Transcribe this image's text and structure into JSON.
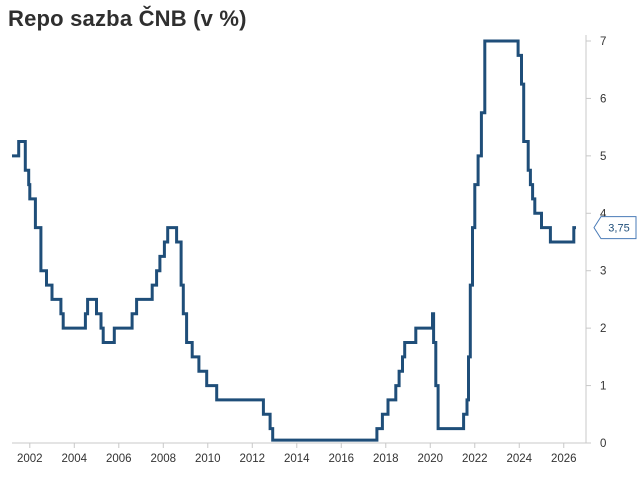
{
  "title": "Repo sazba ČNB (v %)",
  "colors": {
    "line": "#1f4e79",
    "axis": "#c8c8c8",
    "text": "#333333",
    "callout_border": "#4a7bb7"
  },
  "chart_data": {
    "type": "line",
    "title": "Repo sazba ČNB (v %)",
    "xlabel": "",
    "ylabel": "",
    "y_axis_side": "right",
    "xlim": [
      2001.2,
      2027.0
    ],
    "ylim": [
      0,
      7
    ],
    "xticks": [
      2002,
      2004,
      2006,
      2008,
      2010,
      2012,
      2014,
      2016,
      2018,
      2020,
      2022,
      2024,
      2026
    ],
    "xtick_labels": [
      "2002",
      "2004",
      "2006",
      "2008",
      "2010",
      "2012",
      "2014",
      "2016",
      "2018",
      "2020",
      "2022",
      "2024",
      "2026"
    ],
    "yticks": [
      0,
      1,
      2,
      3,
      4,
      5,
      6,
      7
    ],
    "ytick_labels": [
      "0",
      "1",
      "2",
      "3",
      "4",
      "5",
      "6",
      "7"
    ],
    "grid": false,
    "last_value_label": "3,75",
    "series": [
      {
        "step": true,
        "points": [
          [
            2001.2,
            5.0
          ],
          [
            2001.5,
            5.25
          ],
          [
            2001.8,
            4.75
          ],
          [
            2001.95,
            4.5
          ],
          [
            2002.0,
            4.25
          ],
          [
            2002.25,
            3.75
          ],
          [
            2002.5,
            3.0
          ],
          [
            2002.75,
            2.75
          ],
          [
            2003.0,
            2.5
          ],
          [
            2003.4,
            2.25
          ],
          [
            2003.5,
            2.0
          ],
          [
            2004.5,
            2.25
          ],
          [
            2004.6,
            2.5
          ],
          [
            2005.0,
            2.25
          ],
          [
            2005.2,
            2.0
          ],
          [
            2005.3,
            1.75
          ],
          [
            2005.8,
            2.0
          ],
          [
            2006.6,
            2.25
          ],
          [
            2006.8,
            2.5
          ],
          [
            2007.5,
            2.75
          ],
          [
            2007.7,
            3.0
          ],
          [
            2007.85,
            3.25
          ],
          [
            2008.05,
            3.5
          ],
          [
            2008.2,
            3.75
          ],
          [
            2008.6,
            3.5
          ],
          [
            2008.8,
            2.75
          ],
          [
            2008.9,
            2.25
          ],
          [
            2009.05,
            1.75
          ],
          [
            2009.3,
            1.5
          ],
          [
            2009.6,
            1.25
          ],
          [
            2009.95,
            1.0
          ],
          [
            2010.4,
            0.75
          ],
          [
            2012.5,
            0.5
          ],
          [
            2012.8,
            0.25
          ],
          [
            2012.92,
            0.05
          ],
          [
            2017.6,
            0.25
          ],
          [
            2017.85,
            0.5
          ],
          [
            2018.1,
            0.75
          ],
          [
            2018.45,
            1.0
          ],
          [
            2018.6,
            1.25
          ],
          [
            2018.75,
            1.5
          ],
          [
            2018.85,
            1.75
          ],
          [
            2019.35,
            2.0
          ],
          [
            2020.1,
            2.25
          ],
          [
            2020.15,
            1.75
          ],
          [
            2020.25,
            1.0
          ],
          [
            2020.35,
            0.25
          ],
          [
            2021.5,
            0.5
          ],
          [
            2021.65,
            0.75
          ],
          [
            2021.72,
            1.5
          ],
          [
            2021.8,
            2.75
          ],
          [
            2021.9,
            3.75
          ],
          [
            2022.0,
            4.5
          ],
          [
            2022.15,
            5.0
          ],
          [
            2022.3,
            5.75
          ],
          [
            2022.45,
            7.0
          ],
          [
            2023.95,
            6.75
          ],
          [
            2024.1,
            6.25
          ],
          [
            2024.2,
            5.25
          ],
          [
            2024.4,
            4.75
          ],
          [
            2024.5,
            4.5
          ],
          [
            2024.6,
            4.25
          ],
          [
            2024.7,
            4.0
          ],
          [
            2025.0,
            3.75
          ],
          [
            2025.4,
            3.5
          ],
          [
            2026.45,
            3.75
          ],
          [
            2026.55,
            3.75
          ]
        ]
      }
    ]
  }
}
